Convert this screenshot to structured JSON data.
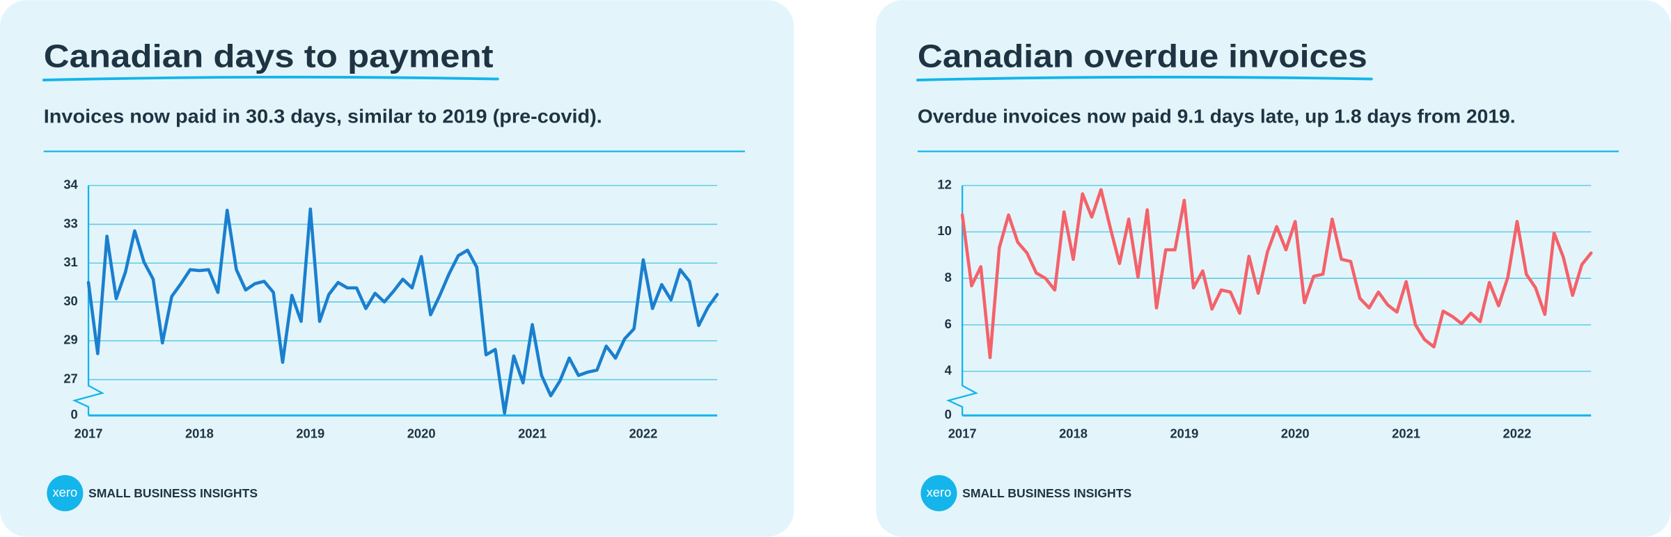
{
  "chart_data": [
    {
      "type": "line",
      "title": "Canadian days to payment",
      "subtitle": "Invoices now paid in 30.3 days, similar to 2019 (pre-covid).",
      "categories": [
        "2017",
        null,
        null,
        null,
        null,
        null,
        null,
        null,
        null,
        null,
        null,
        null,
        "2018",
        null,
        null,
        null,
        null,
        null,
        null,
        null,
        null,
        null,
        null,
        null,
        "2019",
        null,
        null,
        null,
        null,
        null,
        null,
        null,
        null,
        null,
        null,
        null,
        "2020",
        null,
        null,
        null,
        null,
        null,
        null,
        null,
        null,
        null,
        null,
        null,
        "2021",
        null,
        null,
        null,
        null,
        null,
        null,
        null,
        null,
        null,
        null,
        null,
        "2022",
        null,
        null,
        null,
        null,
        null,
        null,
        null,
        null
      ],
      "values": [
        30.65,
        28.27,
        32.2,
        30.11,
        31.0,
        32.38,
        31.34,
        30.76,
        28.63,
        30.18,
        30.61,
        31.08,
        31.05,
        31.08,
        30.32,
        33.07,
        31.08,
        30.4,
        30.61,
        30.69,
        30.32,
        27.98,
        30.22,
        29.35,
        33.11,
        29.35,
        30.25,
        30.65,
        30.47,
        30.47,
        29.78,
        30.29,
        30.0,
        30.36,
        30.76,
        30.47,
        31.52,
        29.57,
        30.22,
        30.94,
        31.55,
        31.73,
        31.16,
        28.23,
        28.41,
        26.28,
        28.19,
        27.29,
        29.24,
        27.54,
        26.86,
        27.36,
        28.12,
        27.54,
        27.65,
        27.72,
        28.52,
        28.12,
        28.77,
        29.1,
        31.41,
        29.78,
        30.58,
        30.07,
        31.08,
        30.69,
        29.21,
        29.82,
        30.25
      ],
      "color": "#1b7fce",
      "ylim": [
        26.2,
        33.9
      ],
      "yticks": [
        {
          "value": 0,
          "label": "0"
        },
        {
          "value": 27.4,
          "label": "27"
        },
        {
          "value": 28.7,
          "label": "29"
        },
        {
          "value": 30.0,
          "label": "30"
        },
        {
          "value": 31.3,
          "label": "31"
        },
        {
          "value": 32.6,
          "label": "33"
        },
        {
          "value": 33.9,
          "label": "34"
        }
      ],
      "axis_break": true,
      "grid": true
    },
    {
      "type": "line",
      "title": "Canadian overdue invoices",
      "subtitle": "Overdue invoices now paid 9.1 days late, up 1.8 days from 2019.",
      "categories": [
        "2017",
        null,
        null,
        null,
        null,
        null,
        null,
        null,
        null,
        null,
        null,
        null,
        "2018",
        null,
        null,
        null,
        null,
        null,
        null,
        null,
        null,
        null,
        null,
        null,
        "2019",
        null,
        null,
        null,
        null,
        null,
        null,
        null,
        null,
        null,
        null,
        null,
        "2020",
        null,
        null,
        null,
        null,
        null,
        null,
        null,
        null,
        null,
        null,
        null,
        "2021",
        null,
        null,
        null,
        null,
        null,
        null,
        null,
        null,
        null,
        null,
        null,
        "2022",
        null,
        null,
        null,
        null,
        null,
        null,
        null,
        null
      ],
      "values": [
        10.73,
        7.68,
        8.5,
        4.59,
        9.32,
        10.73,
        9.55,
        9.09,
        8.23,
        8.0,
        7.5,
        10.86,
        8.82,
        11.64,
        10.64,
        11.82,
        10.18,
        8.64,
        10.55,
        8.05,
        10.95,
        6.73,
        9.23,
        9.23,
        11.36,
        7.59,
        8.32,
        6.68,
        7.5,
        7.41,
        6.5,
        8.95,
        7.36,
        9.14,
        10.23,
        9.23,
        10.45,
        6.95,
        8.09,
        8.18,
        10.55,
        8.82,
        8.73,
        7.14,
        6.73,
        7.41,
        6.86,
        6.55,
        7.86,
        6.0,
        5.36,
        5.05,
        6.59,
        6.36,
        6.05,
        6.5,
        6.14,
        7.82,
        6.82,
        8.05,
        10.45,
        8.18,
        7.59,
        6.45,
        9.95,
        8.91,
        7.27,
        8.59,
        9.09
      ],
      "color": "#f4626a",
      "ylim": [
        2.1,
        12
      ],
      "yticks": [
        0,
        4,
        6,
        8,
        10,
        12
      ],
      "axis_break": true,
      "grid": true
    }
  ],
  "branding": {
    "logo": "xero",
    "label": "SMALL BUSINESS INSIGHTS"
  }
}
